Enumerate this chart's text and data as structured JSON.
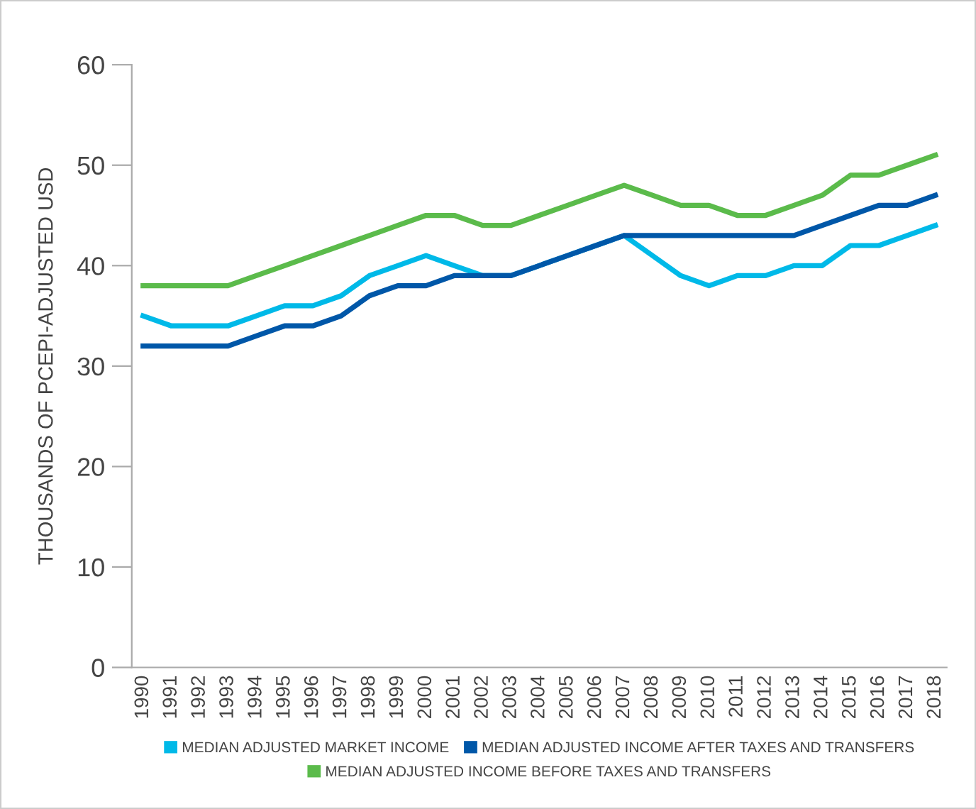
{
  "chart_data": {
    "type": "line",
    "ylabel": "THOUSANDS OF PCEPI-ADJUSTED USD",
    "categories": [
      "1990",
      "1991",
      "1992",
      "1993",
      "1994",
      "1995",
      "1996",
      "1997",
      "1998",
      "1999",
      "2000",
      "2001",
      "2002",
      "2003",
      "2004",
      "2005",
      "2006",
      "2007",
      "2008",
      "2009",
      "2010",
      "2011",
      "2012",
      "2013",
      "2014",
      "2015",
      "2016",
      "2017",
      "2018"
    ],
    "series": [
      {
        "name": "MEDIAN ADJUSTED MARKET INCOME",
        "color": "#00b9e8",
        "values": [
          35,
          34,
          34,
          34,
          35,
          36,
          36,
          37,
          39,
          40,
          41,
          40,
          39,
          39,
          40,
          41,
          42,
          43,
          41,
          39,
          38,
          39,
          39,
          40,
          40,
          42,
          42,
          43,
          44
        ]
      },
      {
        "name": "MEDIAN ADJUSTED INCOME AFTER TAXES AND TRANSFERS",
        "color": "#0057a8",
        "values": [
          32,
          32,
          32,
          32,
          33,
          34,
          34,
          35,
          37,
          38,
          38,
          39,
          39,
          39,
          40,
          41,
          42,
          43,
          43,
          43,
          43,
          43,
          43,
          43,
          44,
          45,
          46,
          46,
          47
        ]
      },
      {
        "name": "MEDIAN ADJUSTED INCOME BEFORE TAXES AND TRANSFERS",
        "color": "#5bbb4b",
        "values": [
          38,
          38,
          38,
          38,
          39,
          40,
          41,
          42,
          43,
          44,
          45,
          45,
          44,
          44,
          45,
          46,
          47,
          48,
          47,
          46,
          46,
          45,
          45,
          46,
          47,
          49,
          49,
          50,
          51
        ]
      }
    ],
    "ylim": [
      0,
      60
    ],
    "yticks": [
      0,
      10,
      20,
      30,
      40,
      50,
      60
    ],
    "grid": false,
    "legend": "bottom",
    "marker": "none",
    "line_style": "solid"
  }
}
